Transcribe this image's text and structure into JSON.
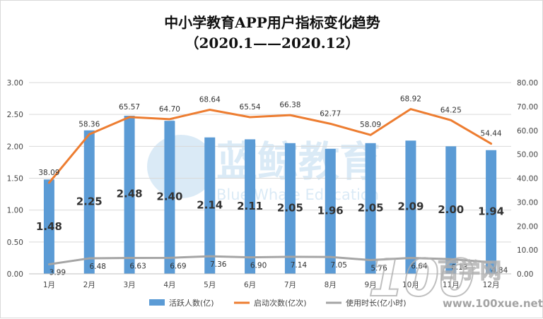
{
  "chart_data": {
    "type": "bar",
    "title": "中小学教育APP用户指标变化趋势",
    "subtitle": "（2020.1——2020.12）",
    "categories": [
      "1月",
      "2月",
      "3月",
      "4月",
      "5月",
      "6月",
      "7月",
      "8月",
      "9月",
      "10月",
      "11月",
      "12月"
    ],
    "series": [
      {
        "name": "活跃人数(亿)",
        "type": "bar",
        "axis": "left",
        "color": "#5b9bd5",
        "values": [
          1.48,
          2.25,
          2.48,
          2.4,
          2.14,
          2.11,
          2.05,
          1.96,
          2.05,
          2.09,
          2.0,
          1.94
        ]
      },
      {
        "name": "启动次数(亿次)",
        "type": "line",
        "axis": "right",
        "color": "#ed7d31",
        "values": [
          38.09,
          58.36,
          65.57,
          64.7,
          68.64,
          65.54,
          66.38,
          62.77,
          58.09,
          68.92,
          64.25,
          54.44
        ]
      },
      {
        "name": "使用时长(亿小时)",
        "type": "line",
        "axis": "right",
        "color": "#a5a5a5",
        "values": [
          3.99,
          6.48,
          6.63,
          6.69,
          7.36,
          6.9,
          7.14,
          7.05,
          5.76,
          6.64,
          6.13,
          4.84
        ]
      }
    ],
    "left_axis": {
      "min": 0,
      "max": 3,
      "step": 0.5,
      "ticks": [
        "0.00",
        "0.50",
        "1.00",
        "1.50",
        "2.00",
        "2.50",
        "3.00"
      ]
    },
    "right_axis": {
      "min": 0,
      "max": 80,
      "step": 10,
      "ticks": [
        "0.00",
        "10.00",
        "20.00",
        "30.00",
        "40.00",
        "50.00",
        "60.00",
        "70.00",
        "80.00"
      ]
    },
    "grid": true,
    "legend_position": "bottom"
  },
  "watermark": {
    "text": "蓝鲸教育",
    "subtext": "Blue Whale Education"
  },
  "corner_logo": {
    "big": "100",
    "chars": "百学网",
    "url": "www.100xue.net"
  }
}
